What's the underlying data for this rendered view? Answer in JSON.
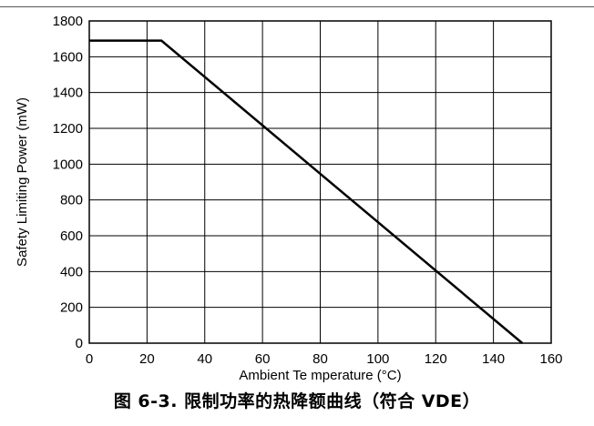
{
  "figure": {
    "caption": "图 6-3. 限制功率的热降额曲线（符合 VDE）"
  },
  "chart_data": {
    "type": "line",
    "title": "",
    "xlabel": "Ambient Te mperature (°C)",
    "ylabel": "Safety Limiting Power (mW)",
    "xlim": [
      0,
      160
    ],
    "ylim": [
      0,
      1800
    ],
    "x_ticks": [
      "0",
      "20",
      "40",
      "60",
      "80",
      "100",
      "120",
      "140",
      "160"
    ],
    "y_ticks": [
      "0",
      "200",
      "400",
      "600",
      "800",
      "1000",
      "1200",
      "1400",
      "1600",
      "1800"
    ],
    "grid": true,
    "legend": "none",
    "series": [
      {
        "x": [
          0,
          25,
          150
        ],
        "y": [
          1690,
          1690,
          0
        ],
        "color": "#000000"
      }
    ]
  }
}
